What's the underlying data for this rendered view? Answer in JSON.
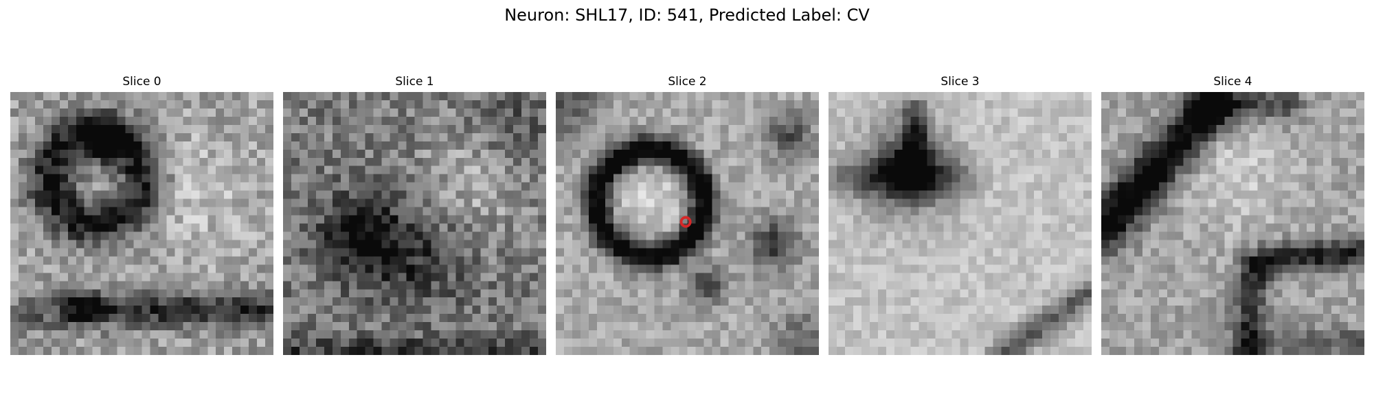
{
  "figure": {
    "title": "Neuron: SHL17, ID: 541, Predicted Label: CV"
  },
  "panels": [
    {
      "title": "Slice 0",
      "content": "grayscale EM image patch with dark ring structure at upper-left and dark horizontal band near bottom"
    },
    {
      "title": "Slice 1",
      "content": "noisy grayscale EM image patch, mostly mid-gray texture with dark blob left of center"
    },
    {
      "title": "Slice 2",
      "content": "grayscale EM image patch with prominent dark circular vesicle ring, small dark spots right and below"
    },
    {
      "title": "Slice 3",
      "content": "light grayscale EM image patch with dark triangular blob upper-left and curved dark line lower-right"
    },
    {
      "title": "Slice 4",
      "content": "grayscale EM image patch with dark diagonal band top-left and dark curved membrane lower-right"
    }
  ],
  "marker": {
    "panel_index": 2,
    "color": "#d62728",
    "shape": "circle"
  },
  "colormap": "gray"
}
